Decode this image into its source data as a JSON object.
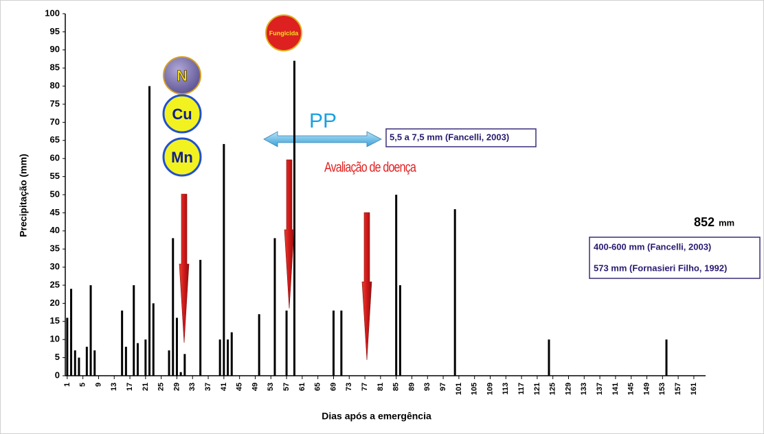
{
  "chart_data": {
    "type": "bar",
    "x_label": "Dias após a emergência",
    "y_label": "Precipitação (mm)",
    "x": [
      1,
      2,
      3,
      4,
      6,
      7,
      8,
      15,
      16,
      18,
      19,
      21,
      22,
      23,
      27,
      28,
      29,
      30,
      31,
      35,
      40,
      41,
      42,
      43,
      50,
      54,
      57,
      59,
      69,
      71,
      85,
      86,
      100,
      124,
      154
    ],
    "values": [
      16,
      24,
      7,
      5,
      8,
      25,
      7,
      18,
      8,
      25,
      9,
      10,
      80,
      20,
      7,
      38,
      16,
      1,
      6,
      32,
      10,
      64,
      10,
      12,
      17,
      38,
      18,
      87,
      18,
      18,
      50,
      25,
      46,
      10,
      10
    ],
    "color": "#000000",
    "xlim": [
      0.5,
      164
    ],
    "xticks": [
      1,
      5,
      9,
      13,
      17,
      21,
      25,
      29,
      33,
      37,
      41,
      45,
      49,
      53,
      57,
      61,
      65,
      69,
      73,
      77,
      81,
      85,
      89,
      93,
      97,
      101,
      105,
      109,
      113,
      117,
      121,
      125,
      129,
      133,
      137,
      141,
      145,
      149,
      153,
      157,
      161
    ],
    "ylim": [
      0,
      100
    ],
    "yticks": [
      0,
      5,
      10,
      15,
      20,
      25,
      30,
      35,
      40,
      45,
      50,
      55,
      60,
      65,
      70,
      75,
      80,
      85,
      90,
      95,
      100
    ],
    "annotations": [
      "N",
      "Cu",
      "Mn",
      "Fungicida",
      "PP",
      "5,5 a 7,5 mm (Fancelli, 2003)",
      "Avaliação de doença",
      "852",
      "mm",
      "400-600 mm (Fancelli, 2003)",
      "573 mm (Fornasieri Filho, 1992)"
    ]
  }
}
